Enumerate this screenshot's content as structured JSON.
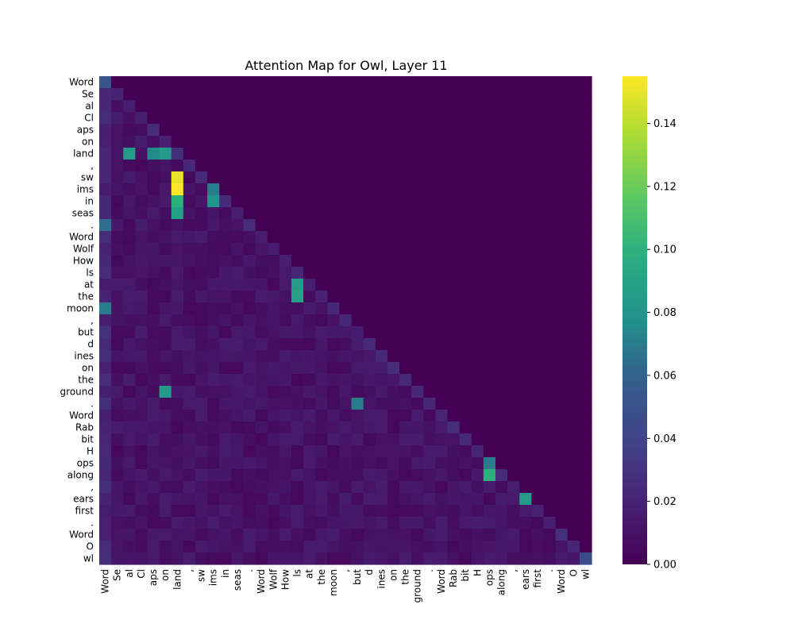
{
  "chart_data": {
    "type": "heatmap",
    "title": "Attention Map for Owl, Layer 11",
    "tokens": [
      "Word",
      "Se",
      "al",
      "Cl",
      "aps",
      "on",
      "land",
      ",",
      "sw",
      "ims",
      "in",
      "seas",
      ".",
      "Word",
      "Wolf",
      "How",
      "ls",
      "at",
      "the",
      "moon",
      ",",
      "but",
      "d",
      "ines",
      "on",
      "the",
      "ground",
      ".",
      "Word",
      "Rab",
      "bit",
      "H",
      "ops",
      "along",
      ",",
      "ears",
      "first",
      ".",
      "Word",
      "O",
      "wl"
    ],
    "colorbar": {
      "min": 0,
      "max": 0.155,
      "ticks": [
        "0.00",
        "0.02",
        "0.04",
        "0.06",
        "0.08",
        "0.10",
        "0.12",
        "0.14"
      ],
      "tick_values": [
        0,
        0.02,
        0.04,
        0.06,
        0.08,
        0.1,
        0.12,
        0.14
      ],
      "colormap": "viridis"
    },
    "mask": "lower-triangular (causal); upper triangle = 0",
    "highlights": [
      {
        "row": "sw",
        "col": "land",
        "value": 0.15
      },
      {
        "row": "ims",
        "col": "land",
        "value": 0.155
      },
      {
        "row": "in",
        "col": "land",
        "value": 0.1
      },
      {
        "row": "seas",
        "col": "land",
        "value": 0.09
      },
      {
        "row": "land",
        "col": "al",
        "value": 0.085
      },
      {
        "row": "land",
        "col": "on",
        "value": 0.085
      },
      {
        "row": "land",
        "col": "aps",
        "value": 0.075
      },
      {
        "row": "in",
        "col": "ims",
        "value": 0.08
      },
      {
        "row": "ims",
        "col": "ims",
        "value": 0.07
      },
      {
        "row": "at",
        "col": "ls",
        "value": 0.085
      },
      {
        "row": "the",
        "col": "ls",
        "value": 0.09
      },
      {
        "row": "ground",
        "col": "on",
        "value": 0.085
      },
      {
        "row": "along",
        "col": "ops",
        "value": 0.1
      },
      {
        "row": "ears",
        "col": "ears",
        "value": 0.085
      },
      {
        "row": "ops",
        "col": "ops",
        "value": 0.07
      },
      {
        "row": "moon",
        "col": "Word",
        "value": 0.07
      },
      {
        "row": ".",
        "col": "Word",
        "value": 0.065
      },
      {
        "row": ".",
        "col": "but",
        "value": 0.07
      },
      {
        "row": "Word",
        "col": "Word",
        "value": 0.04
      },
      {
        "row": "wl",
        "col": "wl",
        "value": 0.045
      }
    ]
  }
}
